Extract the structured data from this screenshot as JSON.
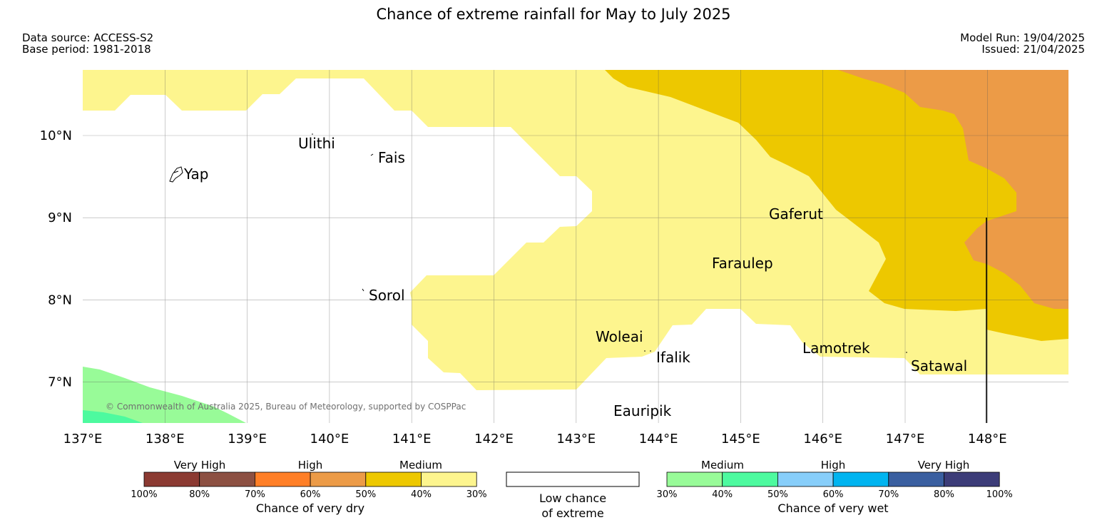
{
  "header": {
    "title": "Chance of extreme rainfall for May to July 2025",
    "data_source": "Data source: ACCESS-S2",
    "base_period": "Base period: 1981-2018",
    "model_run": "Model Run: 19/04/2025",
    "issued": "Issued: 21/04/2025"
  },
  "map": {
    "lon_range": [
      137,
      149
    ],
    "lat_range": [
      6.5,
      10.8
    ],
    "lon_ticks": [
      "137°E",
      "138°E",
      "139°E",
      "140°E",
      "141°E",
      "142°E",
      "143°E",
      "144°E",
      "145°E",
      "146°E",
      "147°E",
      "148°E"
    ],
    "lat_ticks": [
      "10°N",
      "9°N",
      "8°N",
      "7°N"
    ],
    "places": [
      {
        "name": "Yap"
      },
      {
        "name": "Ulithi"
      },
      {
        "name": "Fais"
      },
      {
        "name": "Sorol"
      },
      {
        "name": "Gaferut"
      },
      {
        "name": "Faraulep"
      },
      {
        "name": "Woleai"
      },
      {
        "name": "Ifalik"
      },
      {
        "name": "Lamotrek"
      },
      {
        "name": "Satawal"
      },
      {
        "name": "Eauripik"
      }
    ],
    "copyright": "© Commonwealth of Australia 2025, Bureau of Meteorology, supported by COSPPac",
    "colors": {
      "dry_30_40": "#fdf58e",
      "dry_40_50": "#edc800",
      "dry_50_60": "#ec9b47",
      "wet_30_40": "#98fb98",
      "wet_40_50": "#4dfa9f"
    }
  },
  "legend": {
    "dry": {
      "levels": [
        "Very High",
        "High",
        "Medium"
      ],
      "ticks": [
        "100%",
        "80%",
        "70%",
        "60%",
        "50%",
        "40%",
        "30%"
      ],
      "colors": [
        "#8b3a32",
        "#8c5042",
        "#ff7f27",
        "#ec9b47",
        "#edc800",
        "#fdf58e"
      ],
      "caption": "Chance of very dry"
    },
    "neutral": {
      "caption_line1": "Low chance",
      "caption_line2": "of extreme"
    },
    "wet": {
      "levels": [
        "Medium",
        "High",
        "Very High"
      ],
      "ticks": [
        "30%",
        "40%",
        "50%",
        "60%",
        "70%",
        "80%",
        "100%"
      ],
      "colors": [
        "#98fb98",
        "#4dfa9f",
        "#87cefa",
        "#00b4f0",
        "#3a5fa0",
        "#3c3c78"
      ],
      "caption": "Chance of very wet"
    }
  }
}
